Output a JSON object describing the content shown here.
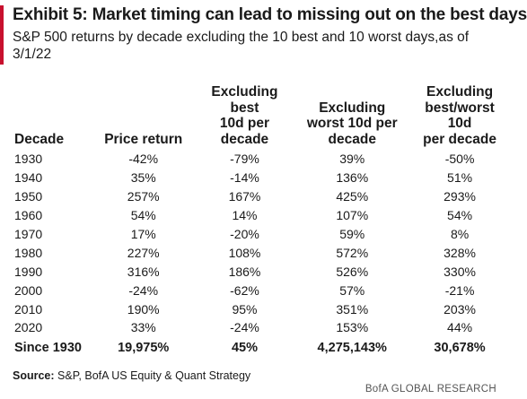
{
  "chart_data": {
    "type": "table",
    "title": "Exhibit 5: Market timing can lead to missing out on the best days",
    "subtitle": "S&P 500 returns by decade excluding the 10 best and 10 worst days,as of 3/1/22",
    "columns": [
      "Decade",
      "Price return",
      "Excluding best 10d per decade",
      "Excluding worst 10d per decade",
      "Excluding best/worst 10d per decade"
    ],
    "header_lines": [
      [
        "Decade"
      ],
      [
        "Price return"
      ],
      [
        "Excluding",
        "best",
        "10d per",
        "decade"
      ],
      [
        "Excluding",
        "worst 10d per",
        "decade"
      ],
      [
        "Excluding",
        "best/worst",
        "10d",
        "per decade"
      ]
    ],
    "rows": [
      [
        "1930",
        "-42%",
        "-79%",
        "39%",
        "-50%"
      ],
      [
        "1940",
        "35%",
        "-14%",
        "136%",
        "51%"
      ],
      [
        "1950",
        "257%",
        "167%",
        "425%",
        "293%"
      ],
      [
        "1960",
        "54%",
        "14%",
        "107%",
        "54%"
      ],
      [
        "1970",
        "17%",
        "-20%",
        "59%",
        "8%"
      ],
      [
        "1980",
        "227%",
        "108%",
        "572%",
        "328%"
      ],
      [
        "1990",
        "316%",
        "186%",
        "526%",
        "330%"
      ],
      [
        "2000",
        "-24%",
        "-62%",
        "57%",
        "-21%"
      ],
      [
        "2010",
        "190%",
        "95%",
        "351%",
        "203%"
      ],
      [
        "2020",
        "33%",
        "-24%",
        "153%",
        "44%"
      ]
    ],
    "total_row": [
      "Since 1930",
      "19,975%",
      "45%",
      "4,275,143%",
      "30,678%"
    ]
  },
  "source": {
    "label": "Source:",
    "text": " S&P,  BofA US Equity & Quant Strategy"
  },
  "brand": "BofA GLOBAL RESEARCH",
  "colors": {
    "accent": "#c8102e",
    "text": "#1a1a1a"
  }
}
